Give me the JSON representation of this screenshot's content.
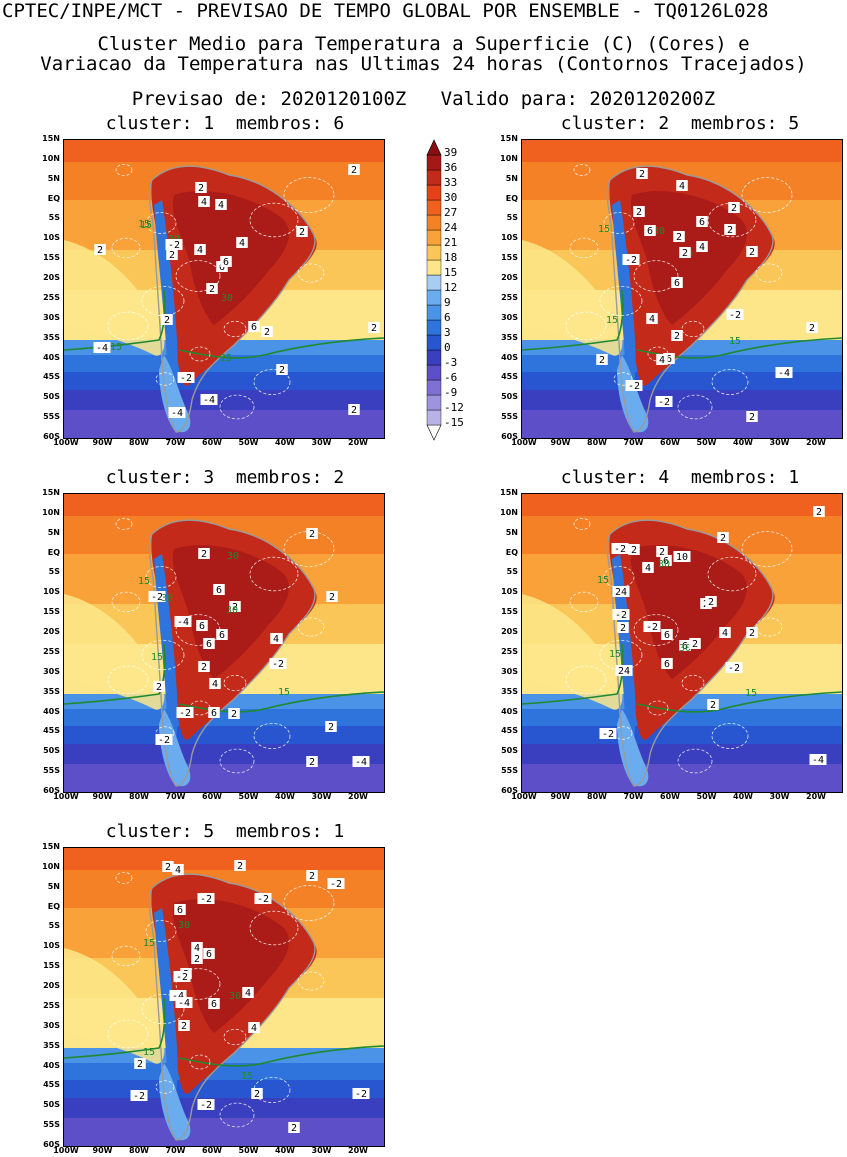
{
  "header": {
    "line1": "CPTEC/INPE/MCT - PREVISAO DE TEMPO GLOBAL POR ENSEMBLE - TQ0126L028",
    "line2": "Cluster Medio para Temperatura a Superficie (C) (Cores) e",
    "line3": "Variacao da Temperatura nas Ultimas 24 horas (Contornos Tracejados)",
    "line4": "Previsao de: 2020120100Z   Valido para: 2020120200Z"
  },
  "panels": [
    {
      "title": "cluster: 1  membros: 6"
    },
    {
      "title": "cluster: 2  membros: 5"
    },
    {
      "title": "cluster: 3  membros: 2"
    },
    {
      "title": "cluster: 4  membros: 1"
    },
    {
      "title": "cluster: 5  membros: 1"
    }
  ],
  "y_ticks": [
    "15N",
    "10N",
    "5N",
    "EQ",
    "5S",
    "10S",
    "15S",
    "20S",
    "25S",
    "30S",
    "35S",
    "40S",
    "45S",
    "50S",
    "55S",
    "60S"
  ],
  "x_ticks": [
    "100W",
    "90W",
    "80W",
    "70W",
    "60W",
    "50W",
    "40W",
    "30W",
    "20W"
  ],
  "colorbar": {
    "labels": [
      "39",
      "36",
      "33",
      "30",
      "27",
      "24",
      "21",
      "18",
      "15",
      "12",
      "9",
      "6",
      "3",
      "0",
      "-3",
      "-6",
      "-9",
      "-12",
      "-15"
    ],
    "colors": [
      "#ffffff",
      "#b8b2e6",
      "#9d93de",
      "#7f70d4",
      "#5c4fc8",
      "#3a3fbf",
      "#2856d0",
      "#2f74dc",
      "#4a93e6",
      "#6aacee",
      "#a7cdf2",
      "#fde68a",
      "#fbc658",
      "#f9a23a",
      "#f58127",
      "#f0601e",
      "#e5421a",
      "#c42a1a",
      "#a51818",
      "#8a0f12"
    ]
  },
  "map_labels": {
    "p1": [
      "15",
      "30",
      "2",
      "2",
      "4",
      "6",
      "4",
      "2",
      "2",
      "6",
      "30",
      "2",
      "-2",
      "4",
      "2",
      "6",
      "25",
      "15",
      "2",
      "15",
      "2",
      "-4",
      "-2",
      "-4",
      "-4",
      "2",
      "2",
      "2",
      "4"
    ],
    "p2": [
      "2",
      "4",
      "2",
      "30",
      "4",
      "2",
      "6",
      "15",
      "6",
      "2",
      "2",
      "-2",
      "2",
      "30",
      "4",
      "2",
      "6",
      "15",
      "-2",
      "2",
      "6",
      "2",
      "15",
      "-4",
      "-2",
      "-2",
      "2",
      "2",
      "4",
      "2"
    ],
    "p3": [
      "30",
      "2",
      "6",
      "2",
      "15",
      "-2",
      "30",
      "6",
      "30",
      "-4",
      "6",
      "4",
      "2",
      "4",
      "15",
      "2",
      "-2",
      "-2",
      "2",
      "15",
      "6",
      "-2",
      "2",
      "2",
      "-4",
      "2",
      "2",
      "4",
      "6"
    ],
    "p4": [
      "2",
      "-2",
      "2",
      "6",
      "10",
      "30",
      "2",
      "4",
      "15",
      "24",
      "-2",
      "2",
      "6",
      "30",
      "2",
      "6",
      "15",
      "24",
      "-2",
      "15",
      "2",
      "2",
      "-2",
      "6",
      "2",
      "-2",
      "-4",
      "4",
      "2",
      "2"
    ],
    "p5": [
      "2",
      "4",
      "2",
      "2",
      "-2",
      "6",
      "30",
      "15",
      "4",
      "6",
      "2",
      "-2",
      "-4",
      "2",
      "30",
      "4",
      "15",
      "2",
      "-2",
      "6",
      "4",
      "-4",
      "2",
      "-2",
      "2",
      "15",
      "-2",
      "-2",
      "-2",
      "2"
    ]
  }
}
